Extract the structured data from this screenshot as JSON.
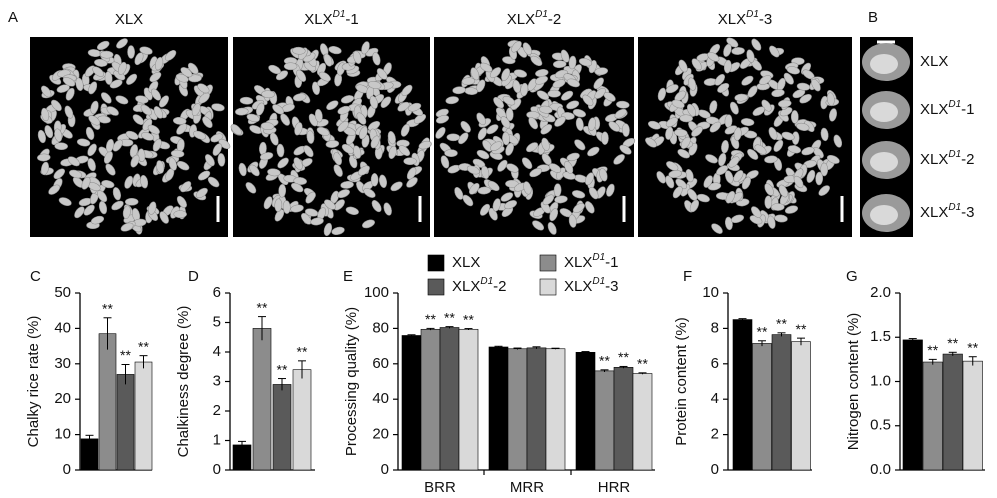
{
  "photos_a": {
    "panel": "A",
    "titles": [
      {
        "base": "XLX"
      },
      {
        "base": "XLX",
        "sup": "D1",
        "suffix": "-1"
      },
      {
        "base": "XLX",
        "sup": "D1",
        "suffix": "-2"
      },
      {
        "base": "XLX",
        "sup": "D1",
        "suffix": "-3"
      }
    ]
  },
  "photos_b": {
    "panel": "B",
    "labels": [
      {
        "base": "XLX"
      },
      {
        "base": "XLX",
        "sup": "D1",
        "suffix": "-1"
      },
      {
        "base": "XLX",
        "sup": "D1",
        "suffix": "-2"
      },
      {
        "base": "XLX",
        "sup": "D1",
        "suffix": "-3"
      }
    ]
  },
  "chart_data": [
    {
      "type": "bar",
      "panel": "C",
      "y_label": "Chalky rice rate (%)",
      "values": [
        8.8,
        38.5,
        27,
        30.5
      ],
      "errors": [
        1,
        4.5,
        2.8,
        1.8
      ],
      "significance": [
        null,
        "**",
        "**",
        "**"
      ],
      "colors": [
        "#000000",
        "#8c8c8c",
        "#5a5a5a",
        "#d9d9d9"
      ],
      "ylim": [
        0,
        50
      ],
      "yticks": [
        0,
        10,
        20,
        30,
        40,
        50
      ]
    },
    {
      "type": "bar",
      "panel": "D",
      "y_label": "Chalkiness degree (%)",
      "values": [
        0.85,
        4.8,
        2.9,
        3.4
      ],
      "errors": [
        0.12,
        0.4,
        0.2,
        0.3
      ],
      "significance": [
        null,
        "**",
        "**",
        "**"
      ],
      "colors": [
        "#000000",
        "#8c8c8c",
        "#5a5a5a",
        "#d9d9d9"
      ],
      "ylim": [
        0,
        6
      ],
      "yticks": [
        0,
        1,
        2,
        3,
        4,
        5,
        6
      ]
    },
    {
      "type": "grouped-bar",
      "panel": "E",
      "y_label": "Processing quality (%)",
      "categories": [
        "BRR",
        "MRR",
        "HRR"
      ],
      "series": [
        {
          "name": "XLX",
          "color": "#000000",
          "values": [
            76,
            69.5,
            66.5
          ],
          "errors": [
            0.4,
            0.4,
            0.4
          ],
          "significance": [
            null,
            null,
            null
          ]
        },
        {
          "name": "XLX",
          "name_sup": "D1",
          "name_suffix": "-1",
          "color": "#8c8c8c",
          "values": [
            79.5,
            68.5,
            56
          ],
          "errors": [
            0.5,
            0.4,
            0.6
          ],
          "significance": [
            "**",
            null,
            "**"
          ]
        },
        {
          "name": "XLX",
          "name_sup": "D1",
          "name_suffix": "-2",
          "color": "#5a5a5a",
          "values": [
            80.5,
            69,
            58
          ],
          "errors": [
            0.5,
            0.6,
            0.5
          ],
          "significance": [
            "**",
            null,
            "**"
          ]
        },
        {
          "name": "XLX",
          "name_sup": "D1",
          "name_suffix": "-3",
          "color": "#d9d9d9",
          "values": [
            79.5,
            68.5,
            54.5
          ],
          "errors": [
            0.4,
            0.3,
            0.4
          ],
          "significance": [
            "**",
            null,
            "**"
          ]
        }
      ],
      "ylim": [
        0,
        100
      ],
      "yticks": [
        0,
        20,
        40,
        60,
        80,
        100
      ]
    },
    {
      "type": "bar",
      "panel": "F",
      "y_label": "Protein content (%)",
      "values": [
        8.5,
        7.15,
        7.65,
        7.25
      ],
      "errors": [
        0.05,
        0.15,
        0.1,
        0.2
      ],
      "significance": [
        null,
        "**",
        "**",
        "**"
      ],
      "colors": [
        "#000000",
        "#8c8c8c",
        "#5a5a5a",
        "#d9d9d9"
      ],
      "ylim": [
        0,
        10
      ],
      "yticks": [
        0,
        2,
        4,
        6,
        8,
        10
      ]
    },
    {
      "type": "bar",
      "panel": "G",
      "y_label": "Nitrogen content (%)",
      "values": [
        1.47,
        1.22,
        1.31,
        1.23
      ],
      "errors": [
        0.015,
        0.03,
        0.02,
        0.05
      ],
      "significance": [
        null,
        "**",
        "**",
        "**"
      ],
      "colors": [
        "#000000",
        "#8c8c8c",
        "#5a5a5a",
        "#d9d9d9"
      ],
      "ylim": [
        0,
        2.0
      ],
      "yticks": [
        {
          "value": 0,
          "label": "0.0"
        },
        {
          "value": 0.5,
          "label": "0.5"
        },
        {
          "value": 1,
          "label": "1.0"
        },
        {
          "value": 1.5,
          "label": "1.5"
        },
        {
          "value": 2,
          "label": "2.0"
        }
      ]
    }
  ]
}
